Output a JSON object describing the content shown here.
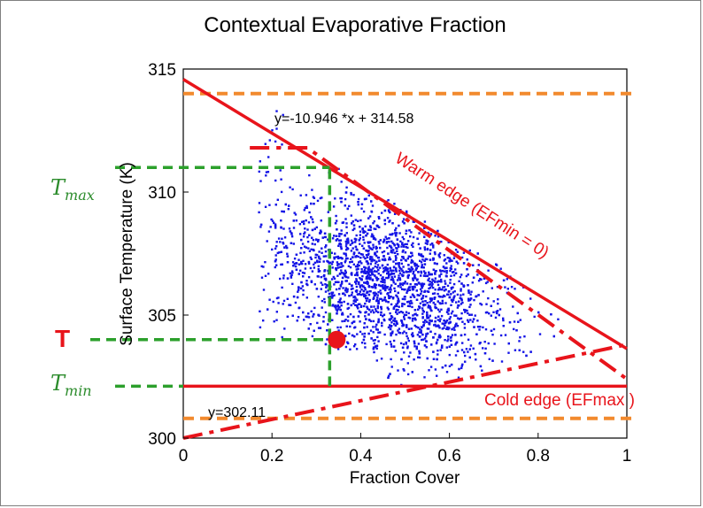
{
  "chart_data": {
    "type": "scatter",
    "title": "Contextual Evaporative Fraction",
    "xlabel": "Fraction Cover",
    "ylabel": "Surface Temperature (K)",
    "xlim": [
      0,
      1
    ],
    "ylim": [
      300,
      315
    ],
    "xticks": [
      0,
      0.2,
      0.4,
      0.6,
      0.8,
      1
    ],
    "xtick_labels": [
      "0",
      "0.2",
      "0.4",
      "0.6",
      "0.8",
      "1"
    ],
    "yticks": [
      300,
      305,
      310,
      315
    ],
    "ytick_labels": [
      "300",
      "305",
      "310",
      "315"
    ],
    "grid": false,
    "series": [
      {
        "type": "scatter",
        "color": "#1414e6",
        "cloud": {
          "x_range": [
            0.17,
            0.87
          ],
          "y_range": [
            300.8,
            314
          ],
          "note_shape": "dense wedge under warm edge"
        }
      }
    ],
    "lines": {
      "warm_edge": {
        "slope": -10.946,
        "intercept": 314.58,
        "x": [
          0,
          1
        ],
        "color": "#e8141b"
      },
      "cold_edge": {
        "y": 302.11,
        "x": [
          0,
          1
        ],
        "color": "#e8141b"
      },
      "warm_dashdot": {
        "x": [
          0.15,
          0.28,
          1
        ],
        "y": [
          311.8,
          311.8,
          302.4
        ],
        "color": "#e8141b"
      },
      "cold_dashdot": {
        "x": [
          0,
          1
        ],
        "y": [
          300,
          303.8
        ],
        "color": "#e8141b"
      },
      "upper_limit": {
        "y": 314,
        "color": "#f28a2e"
      },
      "lower_limit": {
        "y": 300.8,
        "color": "#f28a2e"
      },
      "green_tmax": {
        "y": 311,
        "x_end": 0.33,
        "color": "#2ca02c"
      },
      "green_tmin": {
        "y": 302.11,
        "color": "#2ca02c"
      },
      "green_t": {
        "y": 304,
        "x_end": 0.33,
        "color": "#2ca02c"
      },
      "green_vertical": {
        "x": 0.33,
        "y": [
          302.11,
          311
        ],
        "color": "#2ca02c"
      }
    },
    "point": {
      "x": 0.33,
      "y": 304,
      "color": "#e8141b"
    },
    "annotations": {
      "warm_equation": "y=-10.946 *x + 314.58",
      "cold_equation": "y=302.11",
      "warm_edge_label": "Warm edge (EFmin = 0)",
      "cold_edge_label": "Cold edge (EFmax )",
      "tmax_label": "T",
      "tmax_sub": "max",
      "tmin_label": "T",
      "tmin_sub": "min",
      "t_label": "T"
    }
  }
}
